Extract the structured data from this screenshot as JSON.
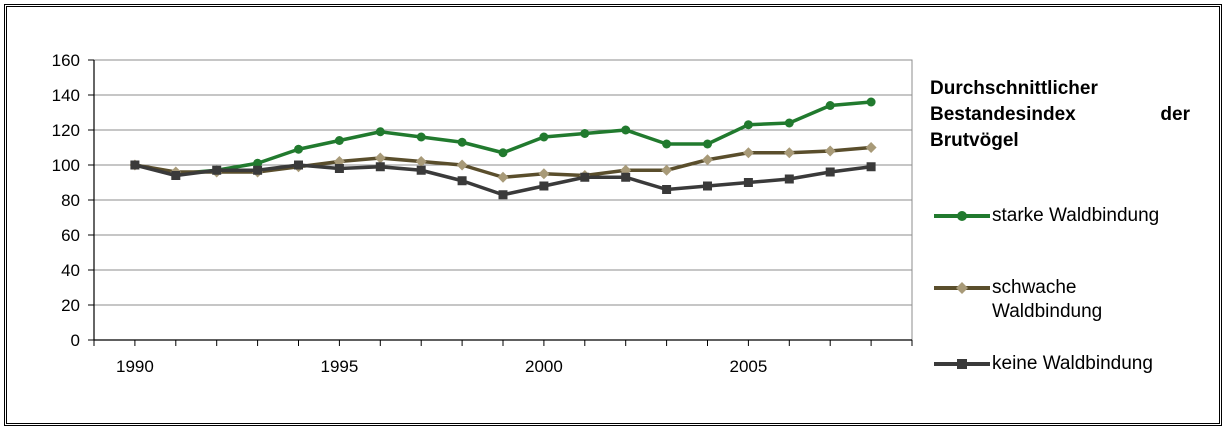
{
  "chart_data": {
    "type": "line",
    "title_lines": [
      "Durchschnittlicher",
      "Bestandesindex",
      "der",
      "Brutvögel"
    ],
    "x": [
      1990,
      1991,
      1992,
      1993,
      1994,
      1995,
      1996,
      1997,
      1998,
      1999,
      2000,
      2001,
      2002,
      2003,
      2004,
      2005,
      2006,
      2007,
      2008
    ],
    "x_tick_labels": [
      "1990",
      "1995",
      "2000",
      "2005"
    ],
    "y_tick_labels": [
      "0",
      "20",
      "40",
      "60",
      "80",
      "100",
      "120",
      "140",
      "160"
    ],
    "ylim": [
      0,
      160
    ],
    "grid": true,
    "legend_placement": "right",
    "series": [
      {
        "name": "starke Waldbindung",
        "color": "#217a2e",
        "marker": "circle",
        "values": [
          100,
          95,
          97,
          101,
          109,
          114,
          119,
          116,
          113,
          107,
          116,
          118,
          120,
          112,
          112,
          123,
          124,
          134,
          136
        ]
      },
      {
        "name": "schwache Waldbindung",
        "name_lines": [
          "schwache",
          "Waldbindung"
        ],
        "color": "#5a4e2c",
        "marker_color": "#a89a78",
        "marker": "diamond",
        "values": [
          100,
          96,
          96,
          96,
          99,
          102,
          104,
          102,
          100,
          93,
          95,
          94,
          97,
          97,
          103,
          107,
          107,
          108,
          110
        ]
      },
      {
        "name": "keine Waldbindung",
        "color": "#3a3a3a",
        "marker": "square",
        "values": [
          100,
          94,
          97,
          97,
          100,
          98,
          99,
          97,
          91,
          83,
          88,
          93,
          93,
          86,
          88,
          90,
          92,
          96,
          99
        ]
      }
    ]
  }
}
